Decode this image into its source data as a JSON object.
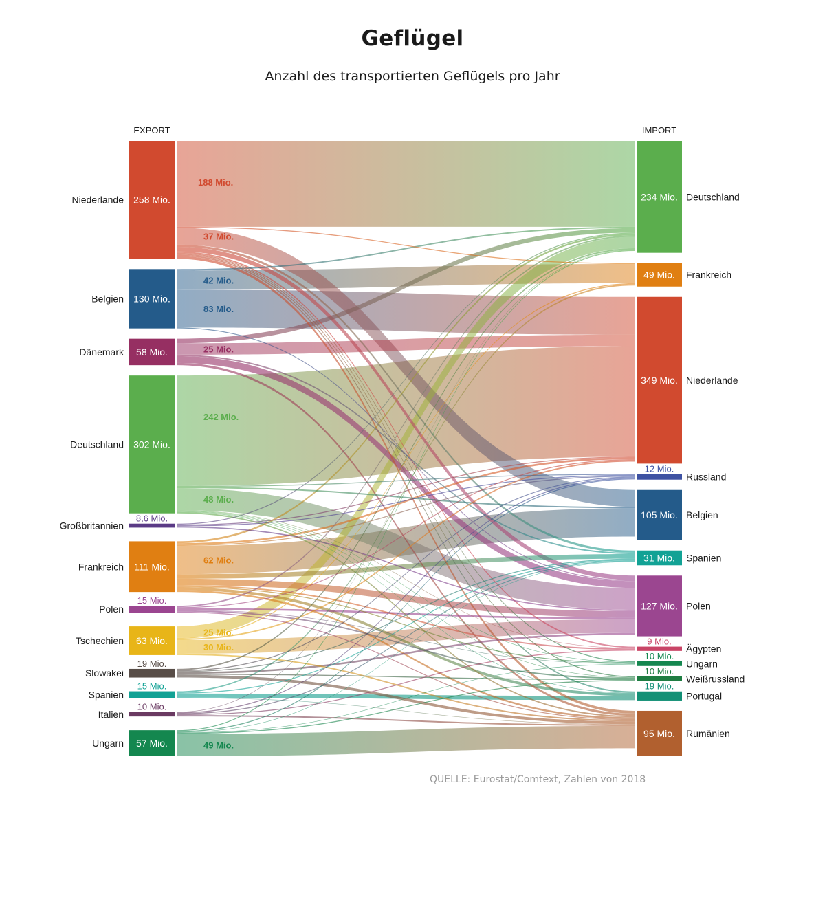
{
  "title": "Geflügel",
  "subtitle": "Anzahl des transportierten Geflügels pro Jahr",
  "source": "QUELLE: Eurostat/Comtext, Zahlen von 2018",
  "colors": {
    "Niederlande": "#d14a2f",
    "Belgien": "#245b8a",
    "Dänemark": "#962f62",
    "Deutschland": "#5bae4d",
    "Großbritannien": "#5a3a86",
    "Frankreich": "#e07f12",
    "Polen": "#9b4690",
    "Tschechien": "#e8b518",
    "Slowakei": "#584d47",
    "Spanien": "#12a295",
    "Italien": "#6a3a62",
    "Ungarn": "#14874f",
    "Russland": "#3e52a3",
    "Ägypten": "#c94466",
    "Weißrussland": "#1f7d42",
    "Portugal": "#139076",
    "Rumänien": "#b1602f"
  },
  "chart_data": {
    "type": "sankey",
    "unit": "Mio.",
    "left_header": "EXPORT",
    "right_header": "IMPORT",
    "exporters": [
      {
        "name": "Niederlande",
        "value": 258,
        "label": "258 Mio."
      },
      {
        "name": "Belgien",
        "value": 130,
        "label": "130 Mio."
      },
      {
        "name": "Dänemark",
        "value": 58,
        "label": "58 Mio."
      },
      {
        "name": "Deutschland",
        "value": 302,
        "label": "302 Mio."
      },
      {
        "name": "Großbritannien",
        "value": 8.6,
        "label": "8,6 Mio."
      },
      {
        "name": "Frankreich",
        "value": 111,
        "label": "111 Mio."
      },
      {
        "name": "Polen",
        "value": 15,
        "label": "15 Mio."
      },
      {
        "name": "Tschechien",
        "value": 63,
        "label": "63 Mio."
      },
      {
        "name": "Slowakei",
        "value": 19,
        "label": "19 Mio."
      },
      {
        "name": "Spanien",
        "value": 15,
        "label": "15 Mio."
      },
      {
        "name": "Italien",
        "value": 10,
        "label": "10 Mio."
      },
      {
        "name": "Ungarn",
        "value": 57,
        "label": "57 Mio."
      }
    ],
    "importers": [
      {
        "name": "Deutschland",
        "value": 234,
        "label": "234 Mio."
      },
      {
        "name": "Frankreich",
        "value": 49,
        "label": "49 Mio."
      },
      {
        "name": "Niederlande",
        "value": 349,
        "label": "349 Mio."
      },
      {
        "name": "Russland",
        "value": 12,
        "label": "12 Mio."
      },
      {
        "name": "Belgien",
        "value": 105,
        "label": "105 Mio."
      },
      {
        "name": "Spanien",
        "value": 31,
        "label": "31 Mio."
      },
      {
        "name": "Polen",
        "value": 127,
        "label": "127 Mio."
      },
      {
        "name": "Ägypten",
        "value": 9,
        "label": "9 Mio."
      },
      {
        "name": "Ungarn",
        "value": 10,
        "label": "10 Mio."
      },
      {
        "name": "Weißrussland",
        "value": 10,
        "label": "10 Mio."
      },
      {
        "name": "Portugal",
        "value": 19,
        "label": "19 Mio."
      },
      {
        "name": "Rumänien",
        "value": 95,
        "label": "95 Mio."
      }
    ],
    "flows": [
      {
        "from": "Niederlande",
        "to": "Deutschland",
        "value": 188,
        "label": "188 Mio."
      },
      {
        "from": "Niederlande",
        "to": "Frankreich",
        "value": 2
      },
      {
        "from": "Niederlande",
        "to": "Belgien",
        "value": 37,
        "label": "37 Mio."
      },
      {
        "from": "Niederlande",
        "to": "Spanien",
        "value": 5
      },
      {
        "from": "Niederlande",
        "to": "Polen",
        "value": 10
      },
      {
        "from": "Niederlande",
        "to": "Ägypten",
        "value": 3
      },
      {
        "from": "Niederlande",
        "to": "Ungarn",
        "value": 2
      },
      {
        "from": "Niederlande",
        "to": "Weißrussland",
        "value": 2
      },
      {
        "from": "Niederlande",
        "to": "Portugal",
        "value": 3
      },
      {
        "from": "Niederlande",
        "to": "Rumänien",
        "value": 6
      },
      {
        "from": "Belgien",
        "to": "Deutschland",
        "value": 3
      },
      {
        "from": "Belgien",
        "to": "Frankreich",
        "value": 42,
        "label": "42 Mio."
      },
      {
        "from": "Belgien",
        "to": "Niederlande",
        "value": 83,
        "label": "83 Mio."
      },
      {
        "from": "Belgien",
        "to": "Polen",
        "value": 2
      },
      {
        "from": "Dänemark",
        "to": "Deutschland",
        "value": 10
      },
      {
        "from": "Dänemark",
        "to": "Niederlande",
        "value": 25,
        "label": "25 Mio."
      },
      {
        "from": "Dänemark",
        "to": "Polen",
        "value": 15
      },
      {
        "from": "Dänemark",
        "to": "Spanien",
        "value": 3
      },
      {
        "from": "Dänemark",
        "to": "Rumänien",
        "value": 5
      },
      {
        "from": "Deutschland",
        "to": "Niederlande",
        "value": 242,
        "label": "242 Mio."
      },
      {
        "from": "Deutschland",
        "to": "Russland",
        "value": 2
      },
      {
        "from": "Deutschland",
        "to": "Belgien",
        "value": 3
      },
      {
        "from": "Deutschland",
        "to": "Polen",
        "value": 48,
        "label": "48 Mio."
      },
      {
        "from": "Deutschland",
        "to": "Ägypten",
        "value": 1
      },
      {
        "from": "Deutschland",
        "to": "Ungarn",
        "value": 1
      },
      {
        "from": "Deutschland",
        "to": "Weißrussland",
        "value": 1
      },
      {
        "from": "Deutschland",
        "to": "Portugal",
        "value": 1
      },
      {
        "from": "Deutschland",
        "to": "Rumänien",
        "value": 3
      },
      {
        "from": "Großbritannien",
        "to": "Deutschland",
        "value": 2
      },
      {
        "from": "Großbritannien",
        "to": "Niederlande",
        "value": 2
      },
      {
        "from": "Großbritannien",
        "to": "Russland",
        "value": 2
      },
      {
        "from": "Großbritannien",
        "to": "Polen",
        "value": 2.6
      },
      {
        "from": "Frankreich",
        "to": "Deutschland",
        "value": 4
      },
      {
        "from": "Frankreich",
        "to": "Niederlande",
        "value": 4
      },
      {
        "from": "Frankreich",
        "to": "Russland",
        "value": 2
      },
      {
        "from": "Frankreich",
        "to": "Belgien",
        "value": 62,
        "label": "62 Mio."
      },
      {
        "from": "Frankreich",
        "to": "Spanien",
        "value": 10
      },
      {
        "from": "Frankreich",
        "to": "Polen",
        "value": 14
      },
      {
        "from": "Frankreich",
        "to": "Ägypten",
        "value": 3
      },
      {
        "from": "Frankreich",
        "to": "Ungarn",
        "value": 2
      },
      {
        "from": "Frankreich",
        "to": "Portugal",
        "value": 6
      },
      {
        "from": "Frankreich",
        "to": "Rumänien",
        "value": 4
      },
      {
        "from": "Polen",
        "to": "Deutschland",
        "value": 3
      },
      {
        "from": "Polen",
        "to": "Niederlande",
        "value": 2
      },
      {
        "from": "Polen",
        "to": "Polen",
        "value": 4
      },
      {
        "from": "Polen",
        "to": "Ungarn",
        "value": 1
      },
      {
        "from": "Polen",
        "to": "Weißrussland",
        "value": 3
      },
      {
        "from": "Polen",
        "to": "Rumänien",
        "value": 2
      },
      {
        "from": "Tschechien",
        "to": "Deutschland",
        "value": 25,
        "label": "25 Mio."
      },
      {
        "from": "Tschechien",
        "to": "Frankreich",
        "value": 2
      },
      {
        "from": "Tschechien",
        "to": "Niederlande",
        "value": 3
      },
      {
        "from": "Tschechien",
        "to": "Polen",
        "value": 30,
        "label": "30 Mio."
      },
      {
        "from": "Tschechien",
        "to": "Rumänien",
        "value": 3
      },
      {
        "from": "Slowakei",
        "to": "Deutschland",
        "value": 3
      },
      {
        "from": "Slowakei",
        "to": "Russland",
        "value": 2
      },
      {
        "from": "Slowakei",
        "to": "Spanien",
        "value": 2
      },
      {
        "from": "Slowakei",
        "to": "Polen",
        "value": 4
      },
      {
        "from": "Slowakei",
        "to": "Weißrussland",
        "value": 2
      },
      {
        "from": "Slowakei",
        "to": "Rumänien",
        "value": 6
      },
      {
        "from": "Spanien",
        "to": "Frankreich",
        "value": 3
      },
      {
        "from": "Spanien",
        "to": "Spanien",
        "value": 2
      },
      {
        "from": "Spanien",
        "to": "Portugal",
        "value": 9
      },
      {
        "from": "Spanien",
        "to": "Rumänien",
        "value": 1
      },
      {
        "from": "Italien",
        "to": "Deutschland",
        "value": 1
      },
      {
        "from": "Italien",
        "to": "Russland",
        "value": 2
      },
      {
        "from": "Italien",
        "to": "Spanien",
        "value": 2
      },
      {
        "from": "Italien",
        "to": "Ägypten",
        "value": 2
      },
      {
        "from": "Italien",
        "to": "Rumänien",
        "value": 3
      },
      {
        "from": "Ungarn",
        "to": "Deutschland",
        "value": 2
      },
      {
        "from": "Ungarn",
        "to": "Russland",
        "value": 2
      },
      {
        "from": "Ungarn",
        "to": "Spanien",
        "value": 1
      },
      {
        "from": "Ungarn",
        "to": "Ungarn",
        "value": 1
      },
      {
        "from": "Ungarn",
        "to": "Weißrussland",
        "value": 2
      },
      {
        "from": "Ungarn",
        "to": "Rumänien",
        "value": 49,
        "label": "49 Mio."
      }
    ]
  }
}
